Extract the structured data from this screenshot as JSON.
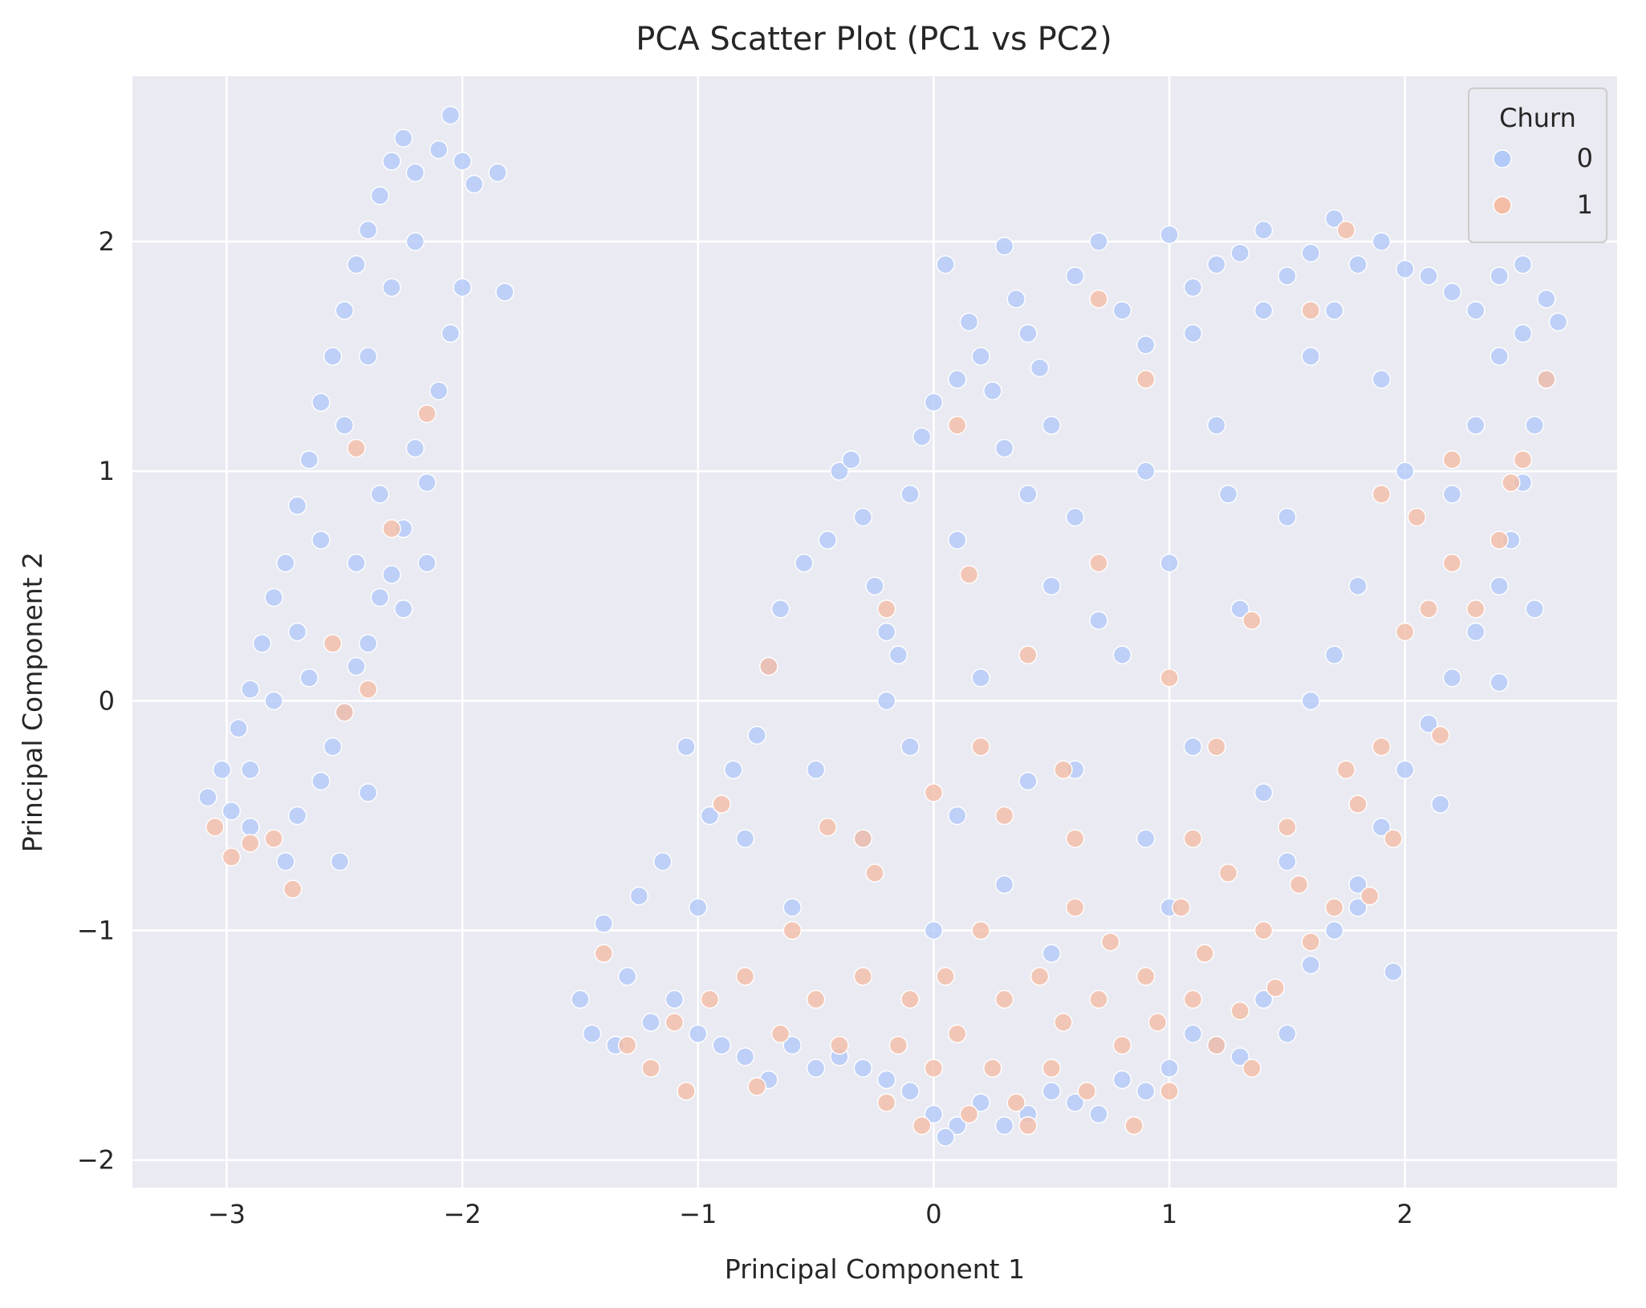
{
  "chart_data": {
    "type": "scatter",
    "title": "PCA Scatter Plot (PC1 vs PC2)",
    "xlabel": "Principal Component 1",
    "ylabel": "Principal Component 2",
    "xlim": [
      -3.4,
      2.9
    ],
    "ylim": [
      -2.12,
      2.72
    ],
    "xticks": [
      -3,
      -2,
      -1,
      0,
      1,
      2
    ],
    "yticks": [
      -2,
      -1,
      0,
      1,
      2
    ],
    "xtick_labels": [
      "−3",
      "−2",
      "−1",
      "0",
      "1",
      "2"
    ],
    "ytick_labels": [
      "−2",
      "−1",
      "0",
      "1",
      "2"
    ],
    "grid": true,
    "background": "#eaeaf2",
    "legend": {
      "title": "Churn",
      "position": "top-right",
      "entries": [
        {
          "label": "0",
          "color": "#b3c9f7"
        },
        {
          "label": "1",
          "color": "#f4bda6"
        }
      ]
    },
    "series": [
      {
        "name": "0",
        "color": "#b3c9f7",
        "points": [
          [
            -3.08,
            -0.42
          ],
          [
            -3.02,
            -0.3
          ],
          [
            -2.95,
            -0.12
          ],
          [
            -2.9,
            0.05
          ],
          [
            -2.85,
            0.25
          ],
          [
            -2.8,
            0.45
          ],
          [
            -2.75,
            0.6
          ],
          [
            -2.7,
            0.85
          ],
          [
            -2.65,
            1.05
          ],
          [
            -2.6,
            1.3
          ],
          [
            -2.55,
            1.5
          ],
          [
            -2.5,
            1.7
          ],
          [
            -2.45,
            1.9
          ],
          [
            -2.4,
            2.05
          ],
          [
            -2.35,
            2.2
          ],
          [
            -2.3,
            2.35
          ],
          [
            -2.25,
            2.45
          ],
          [
            -2.2,
            2.3
          ],
          [
            -2.1,
            2.4
          ],
          [
            -2.05,
            2.55
          ],
          [
            -2.0,
            2.35
          ],
          [
            -1.95,
            2.25
          ],
          [
            -1.85,
            2.3
          ],
          [
            -1.82,
            1.78
          ],
          [
            -2.05,
            1.6
          ],
          [
            -2.1,
            1.35
          ],
          [
            -2.2,
            1.1
          ],
          [
            -2.15,
            0.95
          ],
          [
            -2.25,
            0.75
          ],
          [
            -2.3,
            0.55
          ],
          [
            -2.35,
            0.45
          ],
          [
            -2.4,
            0.25
          ],
          [
            -2.45,
            0.15
          ],
          [
            -2.5,
            -0.05
          ],
          [
            -2.55,
            -0.2
          ],
          [
            -2.6,
            -0.35
          ],
          [
            -2.7,
            -0.5
          ],
          [
            -2.75,
            -0.7
          ],
          [
            -2.9,
            -0.55
          ],
          [
            -2.98,
            -0.48
          ],
          [
            -2.52,
            -0.7
          ],
          [
            -2.4,
            -0.4
          ],
          [
            -2.25,
            0.4
          ],
          [
            -2.15,
            0.6
          ],
          [
            -2.0,
            1.8
          ],
          [
            -2.6,
            0.7
          ],
          [
            -2.7,
            0.3
          ],
          [
            -2.8,
            0.0
          ],
          [
            -2.9,
            -0.3
          ],
          [
            -2.5,
            1.2
          ],
          [
            -2.4,
            1.5
          ],
          [
            -2.3,
            1.8
          ],
          [
            -2.2,
            2.0
          ],
          [
            -2.35,
            0.9
          ],
          [
            -2.45,
            0.6
          ],
          [
            -2.65,
            0.1
          ],
          [
            -1.5,
            -1.3
          ],
          [
            -1.4,
            -0.97
          ],
          [
            -1.3,
            -1.2
          ],
          [
            -1.25,
            -0.85
          ],
          [
            -1.15,
            -0.7
          ],
          [
            -1.05,
            -0.2
          ],
          [
            -0.95,
            -0.5
          ],
          [
            -0.85,
            -0.3
          ],
          [
            -0.75,
            -0.15
          ],
          [
            -0.7,
            0.15
          ],
          [
            -0.65,
            0.4
          ],
          [
            -0.55,
            0.6
          ],
          [
            -0.45,
            0.7
          ],
          [
            -0.4,
            1.0
          ],
          [
            -0.35,
            1.05
          ],
          [
            -0.3,
            0.8
          ],
          [
            -0.25,
            0.5
          ],
          [
            -0.2,
            0.3
          ],
          [
            -0.15,
            0.2
          ],
          [
            -0.1,
            0.9
          ],
          [
            -0.05,
            1.15
          ],
          [
            0.0,
            1.3
          ],
          [
            0.05,
            1.9
          ],
          [
            0.1,
            1.4
          ],
          [
            0.15,
            1.65
          ],
          [
            0.2,
            1.5
          ],
          [
            0.25,
            1.35
          ],
          [
            0.3,
            1.98
          ],
          [
            0.35,
            1.75
          ],
          [
            0.4,
            1.6
          ],
          [
            0.45,
            1.45
          ],
          [
            0.5,
            1.2
          ],
          [
            0.6,
            1.85
          ],
          [
            0.7,
            2.0
          ],
          [
            0.8,
            1.7
          ],
          [
            0.9,
            1.55
          ],
          [
            1.0,
            2.03
          ],
          [
            1.1,
            1.8
          ],
          [
            1.2,
            1.9
          ],
          [
            1.3,
            1.95
          ],
          [
            1.4,
            2.05
          ],
          [
            1.5,
            1.85
          ],
          [
            1.6,
            1.95
          ],
          [
            1.7,
            2.1
          ],
          [
            1.8,
            1.9
          ],
          [
            1.9,
            2.0
          ],
          [
            2.0,
            1.88
          ],
          [
            2.1,
            1.85
          ],
          [
            2.2,
            1.78
          ],
          [
            2.3,
            1.7
          ],
          [
            2.4,
            1.85
          ],
          [
            2.5,
            1.9
          ],
          [
            2.6,
            1.75
          ],
          [
            2.65,
            1.65
          ],
          [
            2.6,
            1.4
          ],
          [
            2.55,
            1.2
          ],
          [
            2.5,
            0.95
          ],
          [
            2.45,
            0.7
          ],
          [
            2.4,
            0.5
          ],
          [
            2.3,
            0.3
          ],
          [
            2.2,
            0.1
          ],
          [
            2.1,
            -0.1
          ],
          [
            2.0,
            -0.3
          ],
          [
            1.9,
            -0.55
          ],
          [
            1.8,
            -0.8
          ],
          [
            1.7,
            -1.0
          ],
          [
            1.6,
            -1.15
          ],
          [
            1.5,
            -1.45
          ],
          [
            1.4,
            -1.3
          ],
          [
            1.3,
            -1.55
          ],
          [
            1.2,
            -1.5
          ],
          [
            1.1,
            -1.45
          ],
          [
            1.0,
            -1.6
          ],
          [
            0.9,
            -1.7
          ],
          [
            0.8,
            -1.65
          ],
          [
            0.7,
            -1.8
          ],
          [
            0.6,
            -1.75
          ],
          [
            0.5,
            -1.7
          ],
          [
            0.4,
            -1.8
          ],
          [
            0.3,
            -1.85
          ],
          [
            0.2,
            -1.75
          ],
          [
            0.1,
            -1.85
          ],
          [
            0.05,
            -1.9
          ],
          [
            0.0,
            -1.8
          ],
          [
            -0.1,
            -1.7
          ],
          [
            -0.2,
            -1.65
          ],
          [
            -0.3,
            -1.6
          ],
          [
            -0.4,
            -1.55
          ],
          [
            -0.5,
            -1.6
          ],
          [
            -0.6,
            -1.5
          ],
          [
            -0.7,
            -1.65
          ],
          [
            -0.8,
            -1.55
          ],
          [
            -0.9,
            -1.5
          ],
          [
            -1.0,
            -1.45
          ],
          [
            -1.1,
            -1.3
          ],
          [
            -1.2,
            -1.4
          ],
          [
            -1.35,
            -1.5
          ],
          [
            -1.45,
            -1.45
          ],
          [
            0.5,
            0.5
          ],
          [
            1.0,
            0.6
          ],
          [
            1.5,
            0.8
          ],
          [
            2.0,
            1.0
          ],
          [
            0.2,
            0.1
          ],
          [
            0.8,
            0.2
          ],
          [
            1.3,
            0.4
          ],
          [
            1.8,
            0.5
          ],
          [
            0.1,
            -0.5
          ],
          [
            0.6,
            -0.3
          ],
          [
            1.1,
            -0.2
          ],
          [
            1.6,
            0.0
          ],
          [
            -0.3,
            -0.6
          ],
          [
            0.3,
            -0.8
          ],
          [
            0.9,
            -0.6
          ],
          [
            1.4,
            -0.4
          ],
          [
            -0.6,
            -0.9
          ],
          [
            0.0,
            -1.0
          ],
          [
            0.5,
            -1.1
          ],
          [
            1.0,
            -0.9
          ],
          [
            1.5,
            -0.7
          ],
          [
            2.2,
            0.9
          ],
          [
            2.3,
            1.2
          ],
          [
            1.9,
            1.4
          ],
          [
            1.6,
            1.5
          ],
          [
            1.2,
            1.2
          ],
          [
            0.9,
            1.0
          ],
          [
            0.4,
            0.9
          ],
          [
            0.1,
            0.7
          ],
          [
            -0.2,
            0.0
          ],
          [
            -0.5,
            -0.3
          ],
          [
            -0.8,
            -0.6
          ],
          [
            -1.0,
            -0.9
          ],
          [
            1.1,
            1.6
          ],
          [
            1.4,
            1.7
          ],
          [
            1.7,
            1.7
          ],
          [
            2.4,
            1.5
          ],
          [
            2.5,
            1.6
          ],
          [
            2.55,
            0.4
          ],
          [
            2.4,
            0.08
          ],
          [
            2.15,
            -0.45
          ],
          [
            1.95,
            -1.18
          ],
          [
            1.8,
            -0.9
          ],
          [
            0.7,
            0.35
          ],
          [
            0.3,
            1.1
          ],
          [
            0.6,
            0.8
          ],
          [
            1.7,
            0.2
          ],
          [
            1.25,
            0.9
          ],
          [
            -0.1,
            -0.2
          ],
          [
            0.4,
            -0.35
          ]
        ]
      },
      {
        "name": "1",
        "color": "#f4bda6",
        "points": [
          [
            -3.05,
            -0.55
          ],
          [
            -2.98,
            -0.68
          ],
          [
            -2.9,
            -0.62
          ],
          [
            -2.8,
            -0.6
          ],
          [
            -2.72,
            -0.82
          ],
          [
            -2.5,
            -0.05
          ],
          [
            -2.4,
            0.05
          ],
          [
            -2.55,
            0.25
          ],
          [
            -2.45,
            1.1
          ],
          [
            -2.15,
            1.25
          ],
          [
            -2.3,
            0.75
          ],
          [
            -1.4,
            -1.1
          ],
          [
            -1.3,
            -1.5
          ],
          [
            -1.2,
            -1.6
          ],
          [
            -1.1,
            -1.4
          ],
          [
            -1.05,
            -1.7
          ],
          [
            -0.95,
            -1.3
          ],
          [
            -0.9,
            -0.45
          ],
          [
            -0.8,
            -1.2
          ],
          [
            -0.75,
            -1.68
          ],
          [
            -0.7,
            0.15
          ],
          [
            -0.65,
            -1.45
          ],
          [
            -0.6,
            -1.0
          ],
          [
            -0.5,
            -1.3
          ],
          [
            -0.45,
            -0.55
          ],
          [
            -0.4,
            -1.5
          ],
          [
            -0.3,
            -1.2
          ],
          [
            -0.25,
            -0.75
          ],
          [
            -0.2,
            -1.75
          ],
          [
            -0.15,
            -1.5
          ],
          [
            -0.1,
            -1.3
          ],
          [
            -0.05,
            -1.85
          ],
          [
            0.0,
            -1.6
          ],
          [
            0.05,
            -1.2
          ],
          [
            0.1,
            -1.45
          ],
          [
            0.15,
            -1.8
          ],
          [
            0.2,
            -1.0
          ],
          [
            0.25,
            -1.6
          ],
          [
            0.3,
            -1.3
          ],
          [
            0.35,
            -1.75
          ],
          [
            0.4,
            -1.85
          ],
          [
            0.45,
            -1.2
          ],
          [
            0.5,
            -1.6
          ],
          [
            0.55,
            -1.4
          ],
          [
            0.6,
            -0.9
          ],
          [
            0.65,
            -1.7
          ],
          [
            0.7,
            -1.3
          ],
          [
            0.75,
            -1.05
          ],
          [
            0.8,
            -1.5
          ],
          [
            0.85,
            -1.85
          ],
          [
            0.9,
            -1.2
          ],
          [
            0.95,
            -1.4
          ],
          [
            1.0,
            -1.7
          ],
          [
            1.05,
            -0.9
          ],
          [
            1.1,
            -1.3
          ],
          [
            1.15,
            -1.1
          ],
          [
            1.2,
            -1.5
          ],
          [
            1.25,
            -0.75
          ],
          [
            1.3,
            -1.35
          ],
          [
            1.35,
            -1.6
          ],
          [
            1.4,
            -1.0
          ],
          [
            1.45,
            -1.25
          ],
          [
            1.5,
            -0.55
          ],
          [
            1.55,
            -0.8
          ],
          [
            1.6,
            -1.05
          ],
          [
            1.7,
            -0.9
          ],
          [
            1.75,
            -0.3
          ],
          [
            1.8,
            -0.45
          ],
          [
            1.85,
            -0.85
          ],
          [
            1.9,
            -0.2
          ],
          [
            1.95,
            -0.6
          ],
          [
            2.0,
            0.3
          ],
          [
            2.1,
            0.4
          ],
          [
            2.15,
            -0.15
          ],
          [
            2.2,
            0.6
          ],
          [
            2.3,
            0.4
          ],
          [
            2.4,
            0.7
          ],
          [
            2.45,
            0.95
          ],
          [
            2.5,
            1.05
          ],
          [
            2.6,
            1.4
          ],
          [
            2.2,
            1.05
          ],
          [
            2.05,
            0.8
          ],
          [
            1.9,
            0.9
          ],
          [
            0.15,
            0.55
          ],
          [
            0.4,
            0.2
          ],
          [
            0.7,
            0.6
          ],
          [
            1.0,
            0.1
          ],
          [
            1.2,
            -0.2
          ],
          [
            0.3,
            -0.5
          ],
          [
            0.6,
            -0.6
          ],
          [
            0.0,
            -0.4
          ],
          [
            -0.3,
            -0.6
          ],
          [
            0.9,
            1.4
          ],
          [
            0.7,
            1.75
          ],
          [
            1.35,
            0.35
          ],
          [
            0.1,
            1.2
          ],
          [
            -0.2,
            0.4
          ],
          [
            1.6,
            1.7
          ],
          [
            1.75,
            2.05
          ],
          [
            0.55,
            -0.3
          ],
          [
            1.1,
            -0.6
          ],
          [
            0.2,
            -0.2
          ]
        ]
      }
    ]
  }
}
